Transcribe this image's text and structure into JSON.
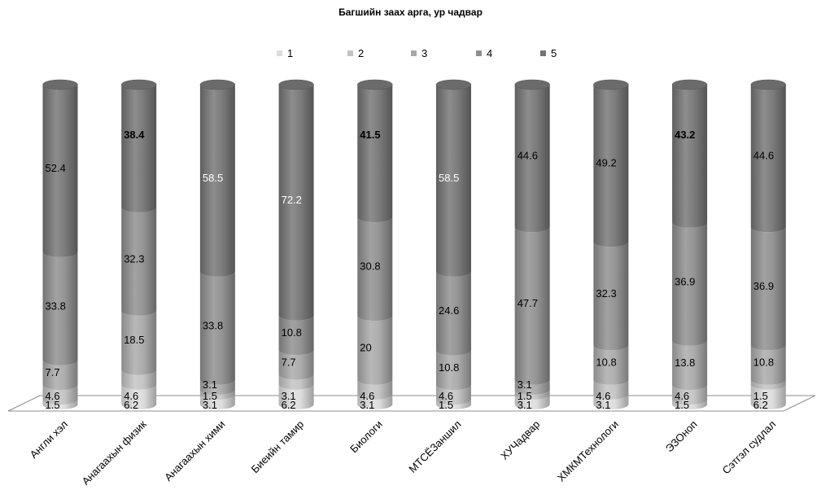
{
  "chart_data": {
    "type": "bar",
    "stacked": true,
    "title": "Багшийн заах арга, ур чадвар",
    "categories": [
      "Англи хэл",
      "Анагаахын физик",
      "Анагаахын хими",
      "Биеийн тамир",
      "Биологи",
      "МТСЁЗаншил",
      "ХУЧадвар",
      "ХМКМТехнологи",
      "ЭЗОноп",
      "Сэтгэл судлал"
    ],
    "series": [
      {
        "name": "1",
        "values": [
          1.5,
          6.2,
          3.1,
          6.2,
          3.1,
          1.5,
          3.1,
          3.1,
          1.5,
          6.2
        ]
      },
      {
        "name": "2",
        "values": [
          4.6,
          4.6,
          1.5,
          3.1,
          4.6,
          4.6,
          1.5,
          4.6,
          4.6,
          1.5
        ]
      },
      {
        "name": "3",
        "values": [
          7.7,
          18.5,
          3.1,
          7.7,
          20,
          10.8,
          3.1,
          10.8,
          13.8,
          10.8
        ]
      },
      {
        "name": "4",
        "values": [
          33.8,
          32.3,
          33.8,
          10.8,
          30.8,
          24.6,
          47.7,
          32.3,
          36.9,
          36.9
        ]
      },
      {
        "name": "5",
        "values": [
          52.4,
          38.4,
          58.5,
          72.2,
          41.5,
          58.5,
          44.6,
          49.2,
          43.2,
          44.6
        ]
      }
    ],
    "labels": [
      [
        "1.5",
        "6.2",
        "3.1",
        "6.2",
        "3.1",
        "1.5",
        "3.1",
        "3.1",
        "1.5",
        "6.2"
      ],
      [
        "4.6",
        "4.6",
        "1.5",
        "3.1",
        "4.6",
        "4.6",
        "1.5",
        "4.6",
        "4.6",
        "1.5"
      ],
      [
        "7.7",
        "18.5",
        "3.1",
        "7.7",
        "20",
        "10.8",
        "3.1",
        "10.8",
        "13.8",
        "10.8"
      ],
      [
        "33.8",
        "32.3",
        "33.8",
        "10.8",
        "30.8",
        "24.6",
        "47.7",
        "32.3",
        "36.9",
        "36.9"
      ],
      [
        "52.4",
        "38.4",
        "58.5",
        "72.2",
        "41.5",
        "58.5",
        "44.6",
        "49.2",
        "43.2",
        "44.6"
      ]
    ],
    "bold_top_labels": [
      "Анагаахын физик",
      "Биологи",
      "ЭЗОноп"
    ],
    "colors": [
      "#dcdcdc",
      "#c2c2c2",
      "#a8a8a8",
      "#8e8e8e",
      "#747474"
    ],
    "ylim": [
      0,
      100
    ],
    "legend_position": "top",
    "grid": false,
    "three_d": true
  }
}
